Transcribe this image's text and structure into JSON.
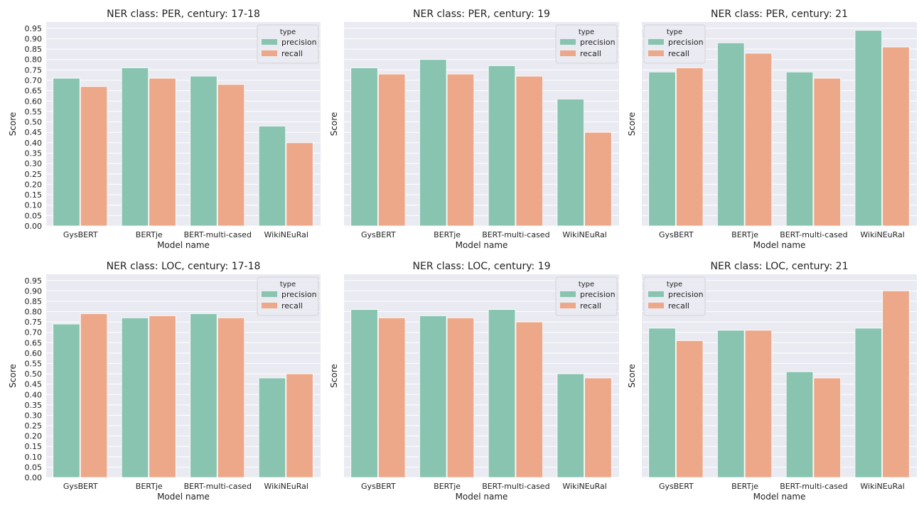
{
  "figure": {
    "colors": {
      "precision": "#88c4b0",
      "recall": "#eca889",
      "panel_bg": "#eaeaf2",
      "grid": "#ffffff"
    },
    "shared": {
      "xlabel": "Model name",
      "ylabel": "Score",
      "categories": [
        "GysBERT",
        "BERTje",
        "BERT-multi-cased",
        "WikiNEuRal"
      ],
      "legend_title": "type",
      "legend_labels": [
        "precision",
        "recall"
      ],
      "yticks": [
        "0.00",
        "0.05",
        "0.10",
        "0.15",
        "0.20",
        "0.25",
        "0.30",
        "0.35",
        "0.40",
        "0.45",
        "0.50",
        "0.55",
        "0.60",
        "0.65",
        "0.70",
        "0.75",
        "0.80",
        "0.85",
        "0.90",
        "0.95"
      ]
    }
  },
  "chart_data": [
    {
      "type": "bar",
      "title": "NER class: PER, century: 17-18",
      "xlabel": "Model name",
      "ylabel": "Score",
      "categories": [
        "GysBERT",
        "BERTje",
        "BERT-multi-cased",
        "WikiNEuRal"
      ],
      "series": [
        {
          "name": "precision",
          "values": [
            0.71,
            0.76,
            0.72,
            0.48
          ]
        },
        {
          "name": "recall",
          "values": [
            0.67,
            0.71,
            0.68,
            0.4
          ]
        }
      ],
      "ylim": [
        0,
        0.98
      ],
      "grid": true,
      "legend": "top-right",
      "show_yticks": true
    },
    {
      "type": "bar",
      "title": "NER class: PER, century: 19",
      "xlabel": "Model name",
      "ylabel": "Score",
      "categories": [
        "GysBERT",
        "BERTje",
        "BERT-multi-cased",
        "WikiNEuRal"
      ],
      "series": [
        {
          "name": "precision",
          "values": [
            0.76,
            0.8,
            0.77,
            0.61
          ]
        },
        {
          "name": "recall",
          "values": [
            0.73,
            0.73,
            0.72,
            0.45
          ]
        }
      ],
      "ylim": [
        0,
        0.98
      ],
      "grid": true,
      "legend": "top-right",
      "show_yticks": false
    },
    {
      "type": "bar",
      "title": "NER class: PER, century: 21",
      "xlabel": "Model name",
      "ylabel": "Score",
      "categories": [
        "GysBERT",
        "BERTje",
        "BERT-multi-cased",
        "WikiNEuRal"
      ],
      "series": [
        {
          "name": "precision",
          "values": [
            0.74,
            0.88,
            0.74,
            0.94
          ]
        },
        {
          "name": "recall",
          "values": [
            0.76,
            0.83,
            0.71,
            0.86
          ]
        }
      ],
      "ylim": [
        0,
        0.98
      ],
      "grid": true,
      "legend": "top-left",
      "show_yticks": false
    },
    {
      "type": "bar",
      "title": "NER class: LOC, century: 17-18",
      "xlabel": "Model name",
      "ylabel": "Score",
      "categories": [
        "GysBERT",
        "BERTje",
        "BERT-multi-cased",
        "WikiNEuRal"
      ],
      "series": [
        {
          "name": "precision",
          "values": [
            0.74,
            0.77,
            0.79,
            0.48
          ]
        },
        {
          "name": "recall",
          "values": [
            0.79,
            0.78,
            0.77,
            0.5
          ]
        }
      ],
      "ylim": [
        0,
        0.98
      ],
      "grid": true,
      "legend": "top-right",
      "show_yticks": true
    },
    {
      "type": "bar",
      "title": "NER class: LOC, century: 19",
      "xlabel": "Model name",
      "ylabel": "Score",
      "categories": [
        "GysBERT",
        "BERTje",
        "BERT-multi-cased",
        "WikiNEuRal"
      ],
      "series": [
        {
          "name": "precision",
          "values": [
            0.81,
            0.78,
            0.81,
            0.5
          ]
        },
        {
          "name": "recall",
          "values": [
            0.77,
            0.77,
            0.75,
            0.48
          ]
        }
      ],
      "ylim": [
        0,
        0.98
      ],
      "grid": true,
      "legend": "top-right",
      "show_yticks": false
    },
    {
      "type": "bar",
      "title": "NER class: LOC, century: 21",
      "xlabel": "Model name",
      "ylabel": "Score",
      "categories": [
        "GysBERT",
        "BERTje",
        "BERT-multi-cased",
        "WikiNEuRal"
      ],
      "series": [
        {
          "name": "precision",
          "values": [
            0.72,
            0.71,
            0.51,
            0.72
          ]
        },
        {
          "name": "recall",
          "values": [
            0.66,
            0.71,
            0.48,
            0.9
          ]
        }
      ],
      "ylim": [
        0,
        0.98
      ],
      "grid": true,
      "legend": "top-left",
      "show_yticks": false
    }
  ]
}
